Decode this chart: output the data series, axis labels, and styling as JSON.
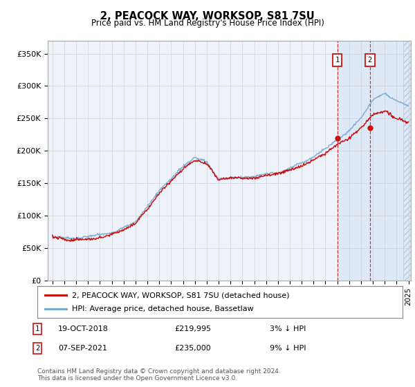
{
  "title": "2, PEACOCK WAY, WORKSOP, S81 7SU",
  "subtitle": "Price paid vs. HM Land Registry's House Price Index (HPI)",
  "ylim": [
    0,
    370000
  ],
  "yticks": [
    0,
    50000,
    100000,
    150000,
    200000,
    250000,
    300000,
    350000
  ],
  "ytick_labels": [
    "£0",
    "£50K",
    "£100K",
    "£150K",
    "£200K",
    "£250K",
    "£300K",
    "£350K"
  ],
  "hpi_color": "#7aaad0",
  "price_color": "#cc1111",
  "sale1_date": "19-OCT-2018",
  "sale1_price": 219995,
  "sale1_label": "3% ↓ HPI",
  "sale2_date": "07-SEP-2021",
  "sale2_price": 235000,
  "sale2_label": "9% ↓ HPI",
  "sale1_x": 2019.0,
  "sale2_x": 2021.75,
  "sale1_y": 219995,
  "sale2_y": 235000,
  "footnote1": "Contains HM Land Registry data © Crown copyright and database right 2024.",
  "footnote2": "This data is licensed under the Open Government Licence v3.0.",
  "legend_label1": "2, PEACOCK WAY, WORKSOP, S81 7SU (detached house)",
  "legend_label2": "HPI: Average price, detached house, Bassetlaw",
  "background_color": "#ffffff",
  "plot_bg_color": "#eef2fa",
  "shaded_start": 2019.0,
  "shaded_end": 2025.2,
  "hatch_start": 2024.58,
  "grid_color": "#cccccc",
  "xmin": 1994.6,
  "xmax": 2025.2
}
